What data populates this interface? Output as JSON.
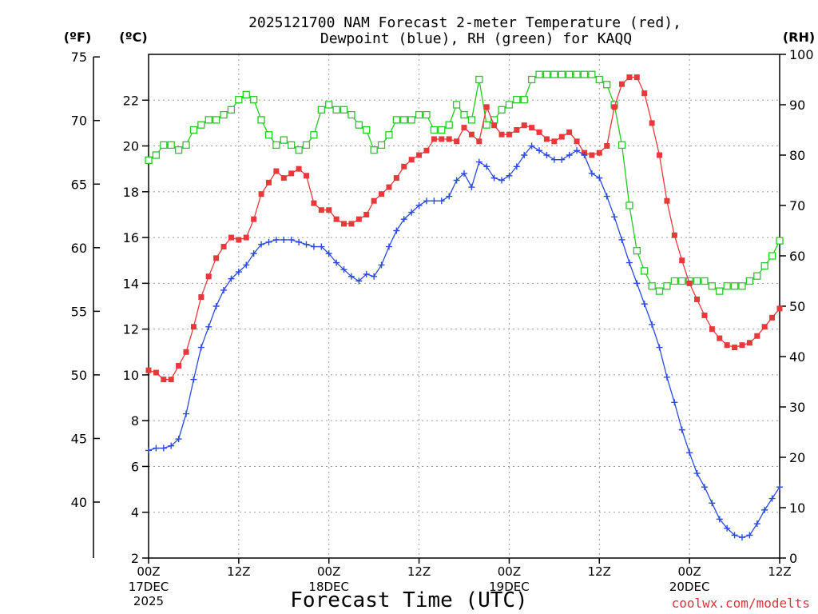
{
  "page": {
    "title_line1": "2025121700 NAM Forecast 2-meter Temperature (red),",
    "title_line2": "Dewpoint (blue), RH (green) for KAQQ",
    "credit": "coolwx.com/modelts"
  },
  "colors": {
    "temperature": "#e8383a",
    "dewpoint": "#2a4ae0",
    "rh": "#22cc22",
    "credit": "#e0303a"
  },
  "chart_data": {
    "type": "line",
    "xlabel": "Forecast Time (UTC)",
    "x_unit": "hours since 2025-12-17 00Z",
    "x": [
      0,
      1,
      2,
      3,
      4,
      5,
      6,
      7,
      8,
      9,
      10,
      11,
      12,
      13,
      14,
      15,
      16,
      17,
      18,
      19,
      20,
      21,
      22,
      23,
      24,
      25,
      26,
      27,
      28,
      29,
      30,
      31,
      32,
      33,
      34,
      35,
      36,
      37,
      38,
      39,
      40,
      41,
      42,
      43,
      44,
      45,
      46,
      47,
      48,
      49,
      50,
      51,
      52,
      53,
      54,
      55,
      56,
      57,
      58,
      59,
      60,
      61,
      62,
      63,
      64,
      65,
      66,
      67,
      68,
      69,
      70,
      71,
      72,
      73,
      74,
      75,
      76,
      77,
      78,
      79,
      80,
      81,
      82,
      83,
      84
    ],
    "xlim": [
      0,
      84
    ],
    "x_ticks": [
      {
        "x": 0,
        "label": "00Z",
        "sub1": "17DEC",
        "sub2": "2025"
      },
      {
        "x": 12,
        "label": "12Z",
        "sub1": "",
        "sub2": ""
      },
      {
        "x": 24,
        "label": "00Z",
        "sub1": "18DEC",
        "sub2": ""
      },
      {
        "x": 36,
        "label": "12Z",
        "sub1": "",
        "sub2": ""
      },
      {
        "x": 48,
        "label": "00Z",
        "sub1": "19DEC",
        "sub2": ""
      },
      {
        "x": 60,
        "label": "12Z",
        "sub1": "",
        "sub2": ""
      },
      {
        "x": 72,
        "label": "00Z",
        "sub1": "20DEC",
        "sub2": ""
      },
      {
        "x": 84,
        "label": "12Z",
        "sub1": "",
        "sub2": ""
      }
    ],
    "axes": {
      "celsius": {
        "label": "(ºC)",
        "ylim": [
          2,
          24
        ],
        "ticks": [
          2,
          4,
          6,
          8,
          10,
          12,
          14,
          16,
          18,
          20,
          22
        ]
      },
      "fahrenheit": {
        "label": "(ºF)",
        "ticks": [
          40,
          45,
          50,
          55,
          60,
          65,
          70,
          75
        ]
      },
      "rh": {
        "label": "(RH)",
        "ylim": [
          0,
          100
        ],
        "ticks": [
          0,
          10,
          20,
          30,
          40,
          50,
          60,
          70,
          80,
          90,
          100
        ]
      }
    },
    "grid": true,
    "series": [
      {
        "key": "temperature",
        "axis": "celsius",
        "marker": "filled-square",
        "values": [
          10.2,
          10.1,
          9.8,
          9.8,
          10.4,
          11.0,
          12.1,
          13.4,
          14.3,
          15.1,
          15.6,
          16.0,
          15.9,
          16.0,
          16.8,
          17.9,
          18.4,
          18.9,
          18.6,
          18.8,
          19.0,
          18.7,
          17.5,
          17.2,
          17.2,
          16.8,
          16.6,
          16.6,
          16.8,
          17.0,
          17.6,
          17.9,
          18.2,
          18.6,
          19.1,
          19.4,
          19.6,
          19.8,
          20.3,
          20.3,
          20.3,
          20.2,
          20.8,
          20.5,
          20.2,
          21.7,
          20.9,
          20.5,
          20.5,
          20.7,
          20.9,
          20.8,
          20.6,
          20.3,
          20.2,
          20.4,
          20.6,
          20.2,
          19.7,
          19.6,
          19.7,
          20.0,
          21.7,
          22.7,
          23.0,
          23.0,
          22.3,
          21.0,
          19.6,
          17.6,
          16.1,
          15.0,
          14.0,
          13.3,
          12.6,
          12.0,
          11.6,
          11.3,
          11.2,
          11.3,
          11.4,
          11.7,
          12.1,
          12.5,
          12.9
        ]
      },
      {
        "key": "dewpoint",
        "axis": "celsius",
        "marker": "plus",
        "values": [
          6.7,
          6.8,
          6.8,
          6.9,
          7.2,
          8.3,
          9.8,
          11.2,
          12.1,
          13.0,
          13.7,
          14.2,
          14.5,
          14.8,
          15.3,
          15.7,
          15.8,
          15.9,
          15.9,
          15.9,
          15.8,
          15.7,
          15.6,
          15.6,
          15.3,
          14.9,
          14.6,
          14.3,
          14.1,
          14.4,
          14.3,
          14.8,
          15.6,
          16.3,
          16.8,
          17.1,
          17.4,
          17.6,
          17.6,
          17.6,
          17.8,
          18.5,
          18.8,
          18.2,
          19.3,
          19.1,
          18.6,
          18.5,
          18.7,
          19.1,
          19.6,
          20.0,
          19.8,
          19.6,
          19.4,
          19.4,
          19.6,
          19.8,
          19.6,
          18.8,
          18.6,
          17.8,
          16.9,
          15.9,
          14.9,
          14.0,
          13.1,
          12.2,
          11.2,
          9.9,
          8.8,
          7.6,
          6.6,
          5.7,
          5.1,
          4.4,
          3.7,
          3.3,
          3.0,
          2.9,
          3.0,
          3.5,
          4.1,
          4.6,
          5.1
        ]
      },
      {
        "key": "rh",
        "axis": "rh",
        "marker": "open-square",
        "values": [
          79,
          80,
          82,
          82,
          81,
          82,
          85,
          86,
          87,
          87,
          88,
          89,
          91,
          92,
          91,
          87,
          84,
          82,
          83,
          82,
          81,
          82,
          84,
          89,
          90,
          89,
          89,
          88,
          86,
          85,
          81,
          82,
          84,
          87,
          87,
          87,
          88,
          88,
          85,
          85,
          86,
          90,
          88,
          87,
          95,
          86,
          87,
          89,
          90,
          91,
          91,
          95,
          96,
          96,
          96,
          96,
          96,
          96,
          96,
          96,
          95,
          94,
          90,
          82,
          70,
          61,
          57,
          54,
          53,
          54,
          55,
          55,
          55,
          55,
          55,
          54,
          53,
          54,
          54,
          54,
          55,
          56,
          58,
          60,
          63
        ]
      }
    ]
  }
}
